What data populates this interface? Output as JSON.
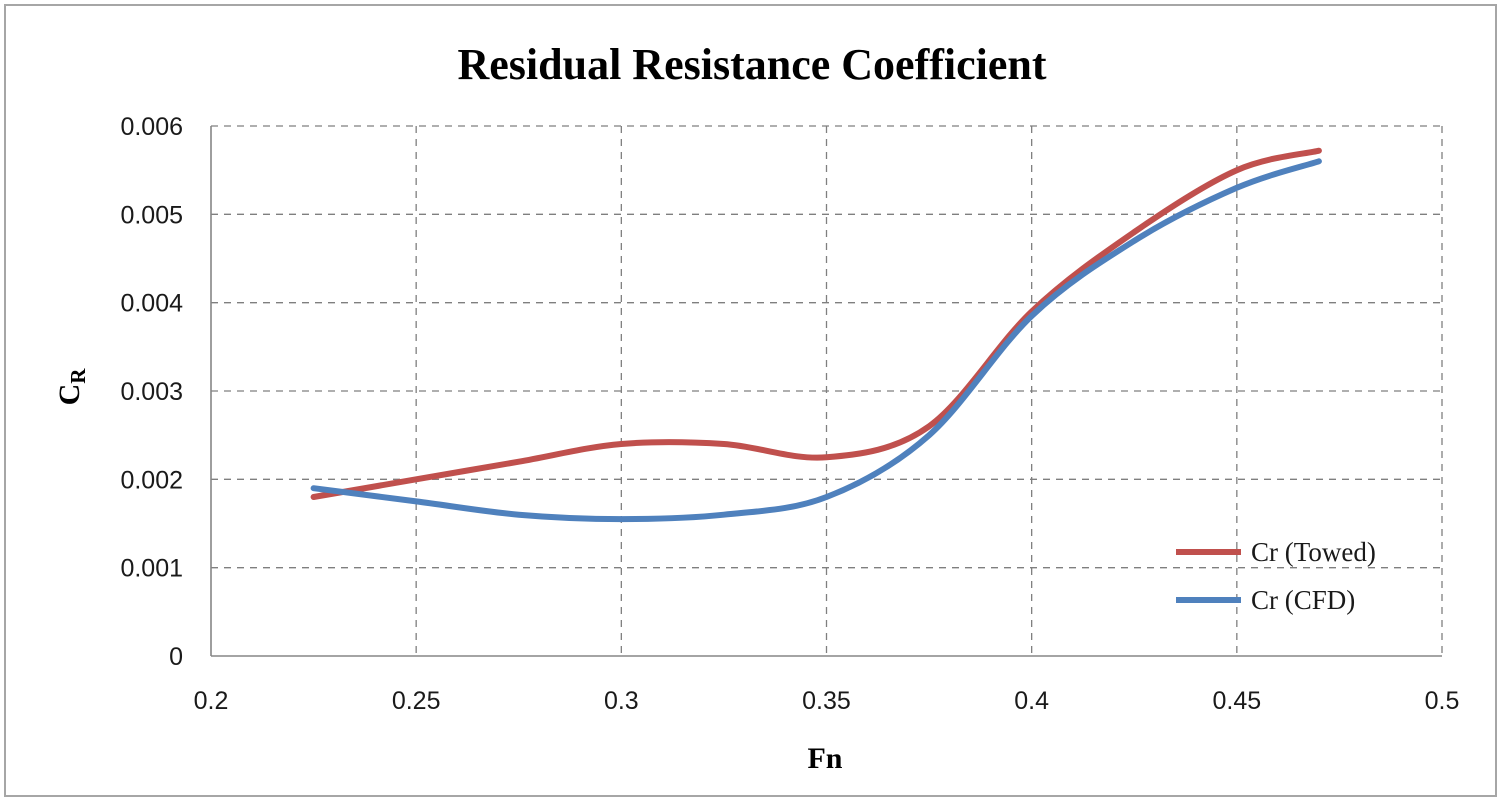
{
  "chart_data": {
    "type": "line",
    "title": "Residual Resistance Coefficient",
    "xlabel": "Fn",
    "ylabel_main": "C",
    "ylabel_sub": "R",
    "xlim": [
      0.2,
      0.5
    ],
    "ylim": [
      0,
      0.006
    ],
    "x_ticks": [
      "0.2",
      "0.25",
      "0.3",
      "0.35",
      "0.4",
      "0.45",
      "0.5"
    ],
    "y_ticks": [
      "0",
      "0.001",
      "0.002",
      "0.003",
      "0.004",
      "0.005",
      "0.006"
    ],
    "grid": true,
    "legend_position": "bottom-right",
    "series": [
      {
        "name": "Cr (Towed)",
        "color": "#c0504d",
        "x": [
          0.225,
          0.25,
          0.275,
          0.3,
          0.325,
          0.35,
          0.375,
          0.4,
          0.425,
          0.45,
          0.47
        ],
        "y": [
          0.0018,
          0.002,
          0.0022,
          0.0024,
          0.0024,
          0.00225,
          0.0026,
          0.0039,
          0.0048,
          0.0055,
          0.00572
        ]
      },
      {
        "name": "Cr (CFD)",
        "color": "#4f81bd",
        "x": [
          0.225,
          0.25,
          0.275,
          0.3,
          0.325,
          0.35,
          0.375,
          0.4,
          0.425,
          0.45,
          0.47
        ],
        "y": [
          0.0019,
          0.00175,
          0.0016,
          0.00155,
          0.0016,
          0.0018,
          0.0025,
          0.00385,
          0.0047,
          0.0053,
          0.0056
        ]
      }
    ]
  }
}
